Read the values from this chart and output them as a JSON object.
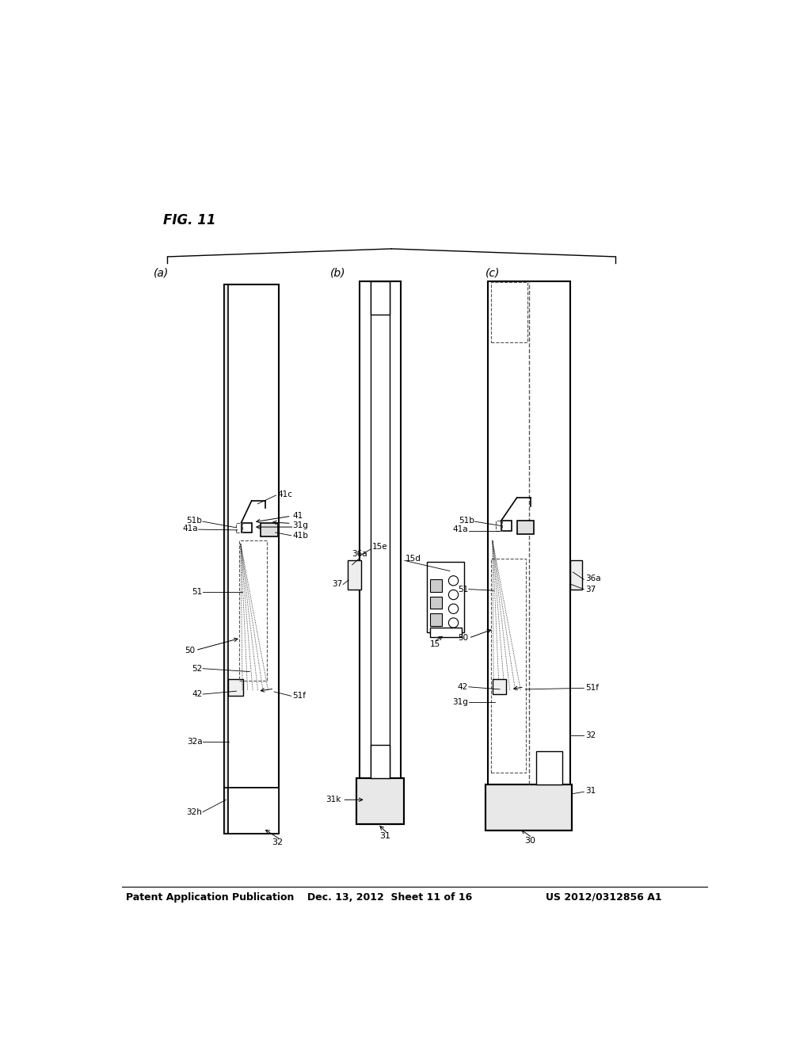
{
  "bg_color": "#ffffff",
  "title_left": "Patent Application Publication",
  "title_mid": "Dec. 13, 2012  Sheet 11 of 16",
  "title_right": "US 2012/0312856 A1",
  "fig_label": "FIG. 11"
}
